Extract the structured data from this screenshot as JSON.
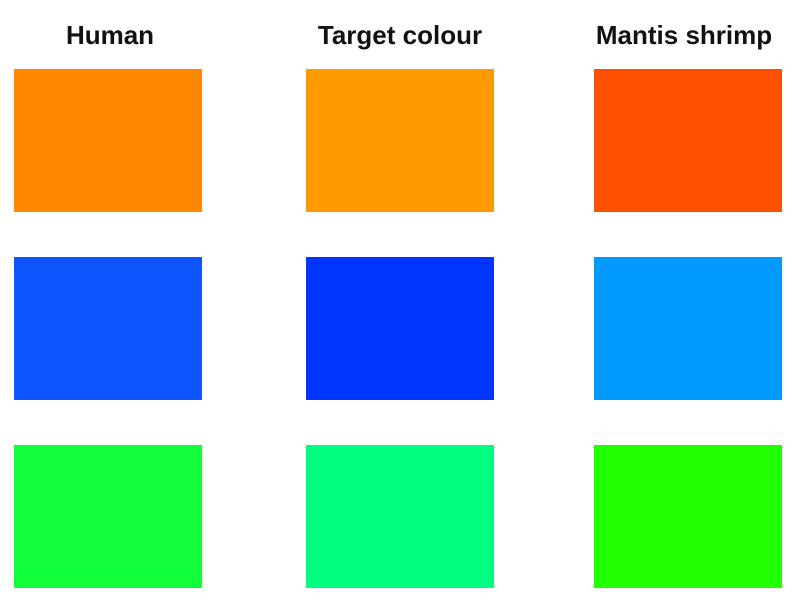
{
  "headers": {
    "human": "Human",
    "target": "Target colour",
    "mantis": "Mantis shrimp"
  },
  "rows": [
    {
      "human": "#ff8800",
      "target": "#ff9900",
      "mantis": "#ff5000"
    },
    {
      "human": "#0f55ff",
      "target": "#0034ff",
      "mantis": "#0099ff"
    },
    {
      "human": "#11ff3a",
      "target": "#00ff7f",
      "mantis": "#22ff00"
    }
  ]
}
